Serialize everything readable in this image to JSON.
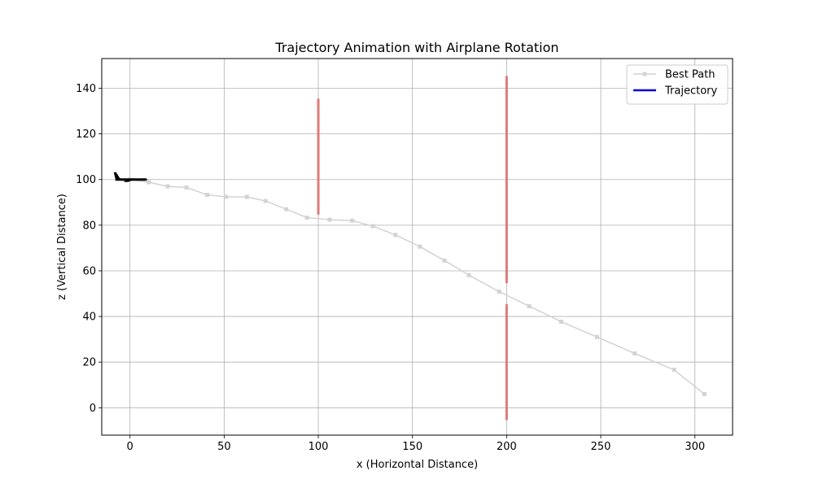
{
  "chart_data": {
    "type": "line",
    "title": "Trajectory Animation with Airplane Rotation",
    "xlabel": "x (Horizontal Distance)",
    "ylabel": "z (Vertical Distance)",
    "xlim": [
      -15,
      320
    ],
    "ylim": [
      -12,
      153
    ],
    "xticks": [
      0,
      50,
      100,
      150,
      200,
      250,
      300
    ],
    "yticks": [
      0,
      20,
      40,
      60,
      80,
      100,
      120,
      140
    ],
    "grid": true,
    "legend_position": "top-right",
    "series": [
      {
        "name": "Best Path",
        "color": "#d3d3d3",
        "marker": "square",
        "x": [
          0,
          10,
          20,
          30,
          41,
          51,
          62,
          72,
          83,
          94,
          106,
          118,
          129,
          141,
          154,
          167,
          180,
          196,
          212,
          229,
          248,
          268,
          289,
          305
        ],
        "y": [
          100,
          98.8,
          97,
          96.5,
          93.3,
          92.4,
          92.4,
          90.6,
          87,
          83.3,
          82.4,
          82,
          79.6,
          75.7,
          70.6,
          64.5,
          58.1,
          50.9,
          44.5,
          37.7,
          31,
          23.8,
          16.6,
          6
        ]
      },
      {
        "name": "Trajectory",
        "color": "#0000cc",
        "x": [],
        "y": []
      }
    ],
    "obstacles": [
      {
        "x": 100,
        "z_start": 85,
        "z_end": 135,
        "color": "#e07b7b"
      },
      {
        "x": 200,
        "z_start": 55,
        "z_end": 145,
        "color": "#e07b7b"
      },
      {
        "x": 200,
        "z_start": -5,
        "z_end": 45,
        "color": "#e07b7b"
      }
    ],
    "airplane": {
      "x": 0,
      "z": 100,
      "heading_deg": 0,
      "color": "#000000"
    }
  }
}
